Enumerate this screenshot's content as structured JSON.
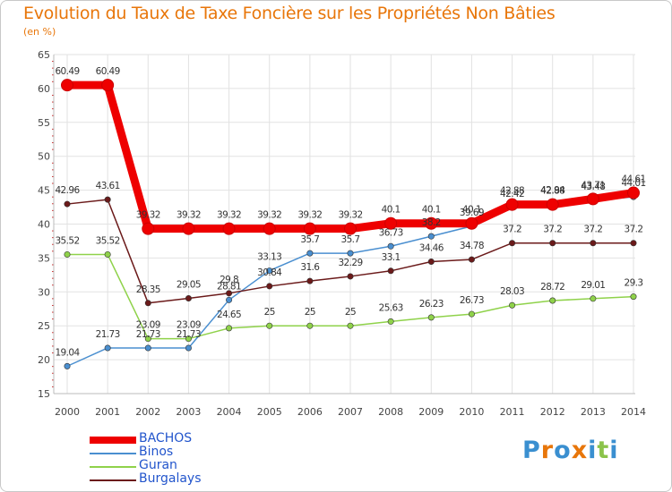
{
  "title": "Evolution du Taux de Taxe Foncière sur les Propriétés Non Bâties",
  "unit_label": "(en %)",
  "logo": {
    "letters": [
      "P",
      "r",
      "o",
      "x",
      "i",
      "t",
      "i"
    ],
    "colors": [
      "#3a8fd0",
      "#e8760a",
      "#3a8fd0",
      "#e8760a",
      "#3a8fd0",
      "#8bc34a",
      "#3a8fd0"
    ]
  },
  "chart_data": {
    "type": "line",
    "title": "Evolution du Taux de Taxe Foncière sur les Propriétés Non Bâties",
    "ylabel": "(en %)",
    "xlabel": "",
    "ylim": [
      15,
      65
    ],
    "yticks": [
      "15",
      "20",
      "25",
      "30",
      "35",
      "40",
      "45",
      "50",
      "55",
      "60",
      "65"
    ],
    "categories": [
      "2000",
      "2001",
      "2002",
      "2003",
      "2004",
      "2005",
      "2006",
      "2007",
      "2008",
      "2009",
      "2010",
      "2011",
      "2012",
      "2013",
      "2014"
    ],
    "series": [
      {
        "name": "BACHOS",
        "color": "#ee0000",
        "bold": true,
        "values": [
          60.49,
          60.49,
          39.32,
          39.32,
          39.32,
          39.32,
          39.32,
          39.32,
          40.1,
          40.1,
          40.1,
          42.88,
          42.88,
          43.71,
          44.61
        ],
        "labels": [
          "60.49",
          "60.49",
          "39.32",
          "39.32",
          "39.32",
          "39.32",
          "39.32",
          "39.32",
          "40.1",
          "40.1",
          "40.1",
          "42.88",
          "42.88",
          "43.71",
          "44.61"
        ]
      },
      {
        "name": "Binos",
        "color": "#4a8fd0",
        "bold": false,
        "values": [
          19.04,
          21.73,
          21.73,
          21.73,
          28.81,
          33.13,
          35.7,
          35.7,
          36.73,
          38.2,
          39.69,
          42.42,
          42.94,
          43.48,
          44.01
        ],
        "labels": [
          "19.04",
          "21.73",
          "21.73",
          "21.73",
          "28.81",
          "33.13",
          "35.7",
          "35.7",
          "36.73",
          "38.2",
          "39.69",
          "42.42",
          "42.94",
          "43.48",
          "44.01"
        ]
      },
      {
        "name": "Guran",
        "color": "#8fd24a",
        "bold": false,
        "values": [
          35.52,
          35.52,
          23.09,
          23.09,
          24.65,
          25,
          25,
          25,
          25.63,
          26.23,
          26.73,
          28.03,
          28.72,
          29.01,
          29.3
        ],
        "labels": [
          "35.52",
          "35.52",
          "23.09",
          "23.09",
          "24.65",
          "25",
          "25",
          "25",
          "25.63",
          "26.23",
          "26.73",
          "28.03",
          "28.72",
          "29.01",
          "29.3"
        ]
      },
      {
        "name": "Burgalays",
        "color": "#6b1a1a",
        "bold": false,
        "values": [
          42.96,
          43.61,
          28.35,
          29.05,
          29.8,
          30.84,
          31.6,
          32.29,
          33.1,
          34.46,
          34.78,
          37.2,
          37.2,
          37.2,
          37.2
        ],
        "labels": [
          "42.96",
          "43.61",
          "28.35",
          "29.05",
          "29.8",
          "30.84",
          "31.6",
          "32.29",
          "33.1",
          "34.46",
          "34.78",
          "37.2",
          "37.2",
          "37.2",
          "37.2"
        ]
      }
    ]
  }
}
